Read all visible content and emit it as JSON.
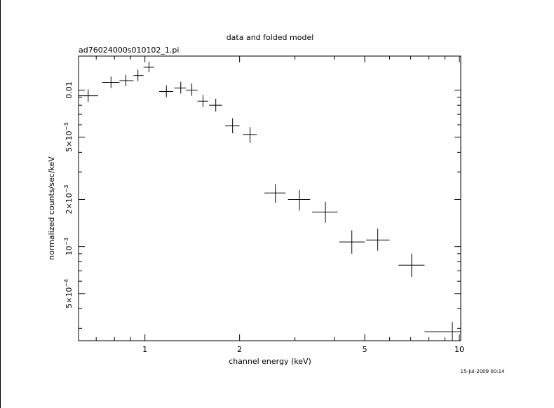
{
  "chart_data": {
    "type": "scatter",
    "title": "data and folded model",
    "subtitle": "ad76024000s010102_1.pi",
    "xlabel": "channel energy (keV)",
    "ylabel": "normalized counts/sec/keV",
    "footer": "15-Jul-2009 00:14",
    "xscale": "log",
    "yscale": "log",
    "xlim": [
      0.615,
      10.1
    ],
    "ylim": [
      0.00025,
      0.0165
    ],
    "x_ticks": [
      {
        "value": 1,
        "label": "1"
      },
      {
        "value": 2,
        "label": "2"
      },
      {
        "value": 5,
        "label": "5"
      },
      {
        "value": 10,
        "label": "10"
      }
    ],
    "y_ticks": [
      {
        "value": 0.0005,
        "mant": "5×10",
        "exp": "−4"
      },
      {
        "value": 0.001,
        "mant": "10",
        "exp": "−3"
      },
      {
        "value": 0.002,
        "mant": "2×10",
        "exp": "−3"
      },
      {
        "value": 0.005,
        "mant": "5×10",
        "exp": "−3"
      },
      {
        "value": 0.01,
        "mant": "0.01",
        "exp": ""
      }
    ],
    "series": [
      {
        "points": [
          {
            "x": 0.66,
            "xlo": 0.615,
            "xhi": 0.71,
            "y": 0.0092,
            "ylo": 0.0084,
            "yhi": 0.0101
          },
          {
            "x": 0.78,
            "xlo": 0.73,
            "xhi": 0.83,
            "y": 0.0112,
            "ylo": 0.0103,
            "yhi": 0.0122
          },
          {
            "x": 0.87,
            "xlo": 0.83,
            "xhi": 0.92,
            "y": 0.0115,
            "ylo": 0.0106,
            "yhi": 0.0125
          },
          {
            "x": 0.95,
            "xlo": 0.92,
            "xhi": 0.99,
            "y": 0.0124,
            "ylo": 0.0114,
            "yhi": 0.0135
          },
          {
            "x": 1.03,
            "xlo": 0.99,
            "xhi": 1.07,
            "y": 0.014,
            "ylo": 0.013,
            "yhi": 0.0152
          },
          {
            "x": 1.17,
            "xlo": 1.11,
            "xhi": 1.23,
            "y": 0.0098,
            "ylo": 0.009,
            "yhi": 0.0107
          },
          {
            "x": 1.3,
            "xlo": 1.24,
            "xhi": 1.35,
            "y": 0.0103,
            "ylo": 0.0095,
            "yhi": 0.0113
          },
          {
            "x": 1.41,
            "xlo": 1.35,
            "xhi": 1.47,
            "y": 0.01,
            "ylo": 0.0092,
            "yhi": 0.011
          },
          {
            "x": 1.53,
            "xlo": 1.47,
            "xhi": 1.59,
            "y": 0.0085,
            "ylo": 0.0078,
            "yhi": 0.0093
          },
          {
            "x": 1.68,
            "xlo": 1.6,
            "xhi": 1.76,
            "y": 0.008,
            "ylo": 0.0073,
            "yhi": 0.0088
          },
          {
            "x": 1.9,
            "xlo": 1.8,
            "xhi": 2.0,
            "y": 0.0059,
            "ylo": 0.0053,
            "yhi": 0.0066
          },
          {
            "x": 2.16,
            "xlo": 2.05,
            "xhi": 2.27,
            "y": 0.0052,
            "ylo": 0.0046,
            "yhi": 0.0058
          },
          {
            "x": 2.6,
            "xlo": 2.4,
            "xhi": 2.8,
            "y": 0.0022,
            "ylo": 0.0019,
            "yhi": 0.0025
          },
          {
            "x": 3.1,
            "xlo": 2.85,
            "xhi": 3.35,
            "y": 0.002,
            "ylo": 0.0017,
            "yhi": 0.0023
          },
          {
            "x": 3.75,
            "xlo": 3.4,
            "xhi": 4.1,
            "y": 0.00166,
            "ylo": 0.00142,
            "yhi": 0.00193
          },
          {
            "x": 4.55,
            "xlo": 4.15,
            "xhi": 5.0,
            "y": 0.00107,
            "ylo": 0.0009,
            "yhi": 0.00127
          },
          {
            "x": 5.5,
            "xlo": 5.05,
            "xhi": 6.0,
            "y": 0.0011,
            "ylo": 0.00094,
            "yhi": 0.0013
          },
          {
            "x": 7.05,
            "xlo": 6.4,
            "xhi": 7.75,
            "y": 0.00076,
            "ylo": 0.00064,
            "yhi": 0.0009
          },
          {
            "x": 9.5,
            "xlo": 7.75,
            "xhi": 10.1,
            "y": 0.000285,
            "ylo": 0.00025,
            "yhi": 0.00033
          }
        ]
      }
    ]
  }
}
